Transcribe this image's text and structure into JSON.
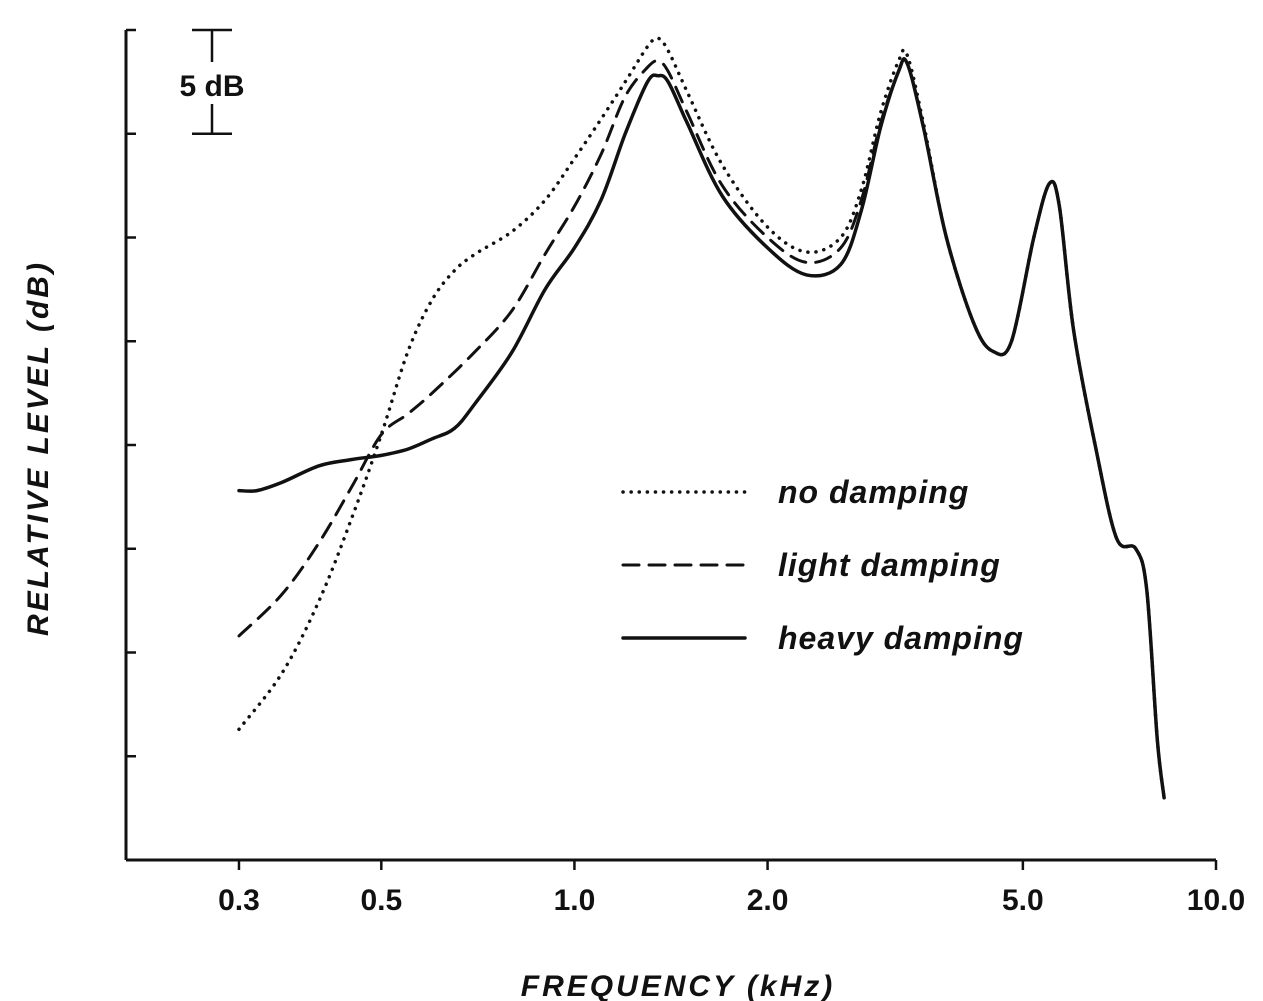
{
  "chart_data": {
    "type": "line",
    "title": "",
    "xlabel": "FREQUENCY   (kHz)",
    "ylabel": "RELATIVE   LEVEL   (dB)",
    "x_scale": "log",
    "xlim": [
      0.2,
      10.0
    ],
    "ylim": [
      0,
      40
    ],
    "x_ticks": [
      0.3,
      0.5,
      1.0,
      2.0,
      5.0,
      10.0
    ],
    "x_tick_labels": [
      "0.3",
      "0.5",
      "1.0",
      "2.0",
      "5.0",
      "10.0"
    ],
    "y_ticks": [
      0,
      5,
      10,
      15,
      20,
      25,
      30,
      35,
      40
    ],
    "grid": false,
    "legend_position": "center-right",
    "scale_bar_label": "5 dB",
    "scale_bar_db": 5,
    "series": [
      {
        "name": "no damping",
        "style": "dotted",
        "x": [
          0.3,
          0.35,
          0.4,
          0.45,
          0.5,
          0.55,
          0.6,
          0.65,
          0.7,
          0.8,
          0.9,
          1.0,
          1.1,
          1.2,
          1.3,
          1.35,
          1.4,
          1.5,
          1.7,
          2.0,
          2.3,
          2.6,
          2.8,
          3.0,
          3.2,
          3.3,
          3.5,
          3.8,
          4.2,
          4.5,
          4.8,
          5.2,
          5.5,
          5.7,
          6.0,
          6.5,
          7.0,
          7.5,
          7.8,
          8.1,
          8.3
        ],
        "y": [
          6.3,
          9.0,
          12.5,
          16.5,
          20.5,
          24.5,
          27.0,
          28.4,
          29.2,
          30.3,
          31.8,
          33.8,
          35.7,
          37.5,
          39.2,
          39.6,
          39.0,
          37.0,
          33.5,
          30.5,
          29.3,
          30.0,
          32.3,
          36.0,
          38.5,
          38.8,
          35.5,
          30.0,
          25.8,
          24.5,
          25.0,
          30.0,
          32.6,
          31.5,
          25.5,
          19.8,
          15.5,
          15.0,
          13.0,
          5.8,
          3.0
        ]
      },
      {
        "name": "light damping",
        "style": "dashed",
        "x": [
          0.3,
          0.35,
          0.4,
          0.45,
          0.5,
          0.55,
          0.6,
          0.7,
          0.8,
          0.9,
          1.0,
          1.1,
          1.2,
          1.3,
          1.35,
          1.4,
          1.5,
          1.7,
          2.0,
          2.3,
          2.6,
          2.8,
          3.0,
          3.2,
          3.3,
          3.5,
          3.8,
          4.2,
          4.5,
          4.8,
          5.2,
          5.5,
          5.7,
          6.0,
          6.5,
          7.0,
          7.5,
          7.8,
          8.1,
          8.3
        ],
        "y": [
          10.8,
          12.8,
          15.3,
          18.0,
          20.5,
          21.5,
          22.5,
          24.5,
          26.5,
          29.2,
          31.5,
          34.0,
          36.8,
          38.2,
          38.5,
          38.0,
          36.0,
          32.5,
          30.0,
          28.8,
          29.5,
          31.8,
          35.5,
          38.0,
          38.4,
          35.3,
          30.0,
          25.8,
          24.5,
          25.0,
          30.0,
          32.6,
          31.5,
          25.5,
          19.8,
          15.5,
          15.0,
          13.0,
          5.8,
          3.0
        ]
      },
      {
        "name": "heavy damping",
        "style": "solid",
        "x": [
          0.3,
          0.32,
          0.35,
          0.4,
          0.45,
          0.5,
          0.55,
          0.6,
          0.65,
          0.7,
          0.8,
          0.9,
          1.0,
          1.1,
          1.2,
          1.3,
          1.35,
          1.4,
          1.5,
          1.7,
          2.0,
          2.3,
          2.6,
          2.8,
          3.0,
          3.2,
          3.3,
          3.5,
          3.8,
          4.2,
          4.5,
          4.8,
          5.2,
          5.5,
          5.7,
          6.0,
          6.5,
          7.0,
          7.5,
          7.8,
          8.1,
          8.3
        ],
        "y": [
          17.8,
          17.8,
          18.2,
          19.0,
          19.3,
          19.5,
          19.8,
          20.3,
          20.8,
          22.0,
          24.5,
          27.5,
          29.5,
          31.8,
          35.0,
          37.5,
          37.8,
          37.5,
          35.5,
          32.0,
          29.5,
          28.2,
          28.7,
          31.3,
          35.3,
          38.0,
          38.4,
          35.3,
          30.0,
          25.8,
          24.5,
          25.0,
          30.0,
          32.6,
          31.5,
          25.5,
          19.8,
          15.5,
          15.0,
          13.0,
          5.8,
          3.0
        ]
      }
    ]
  }
}
